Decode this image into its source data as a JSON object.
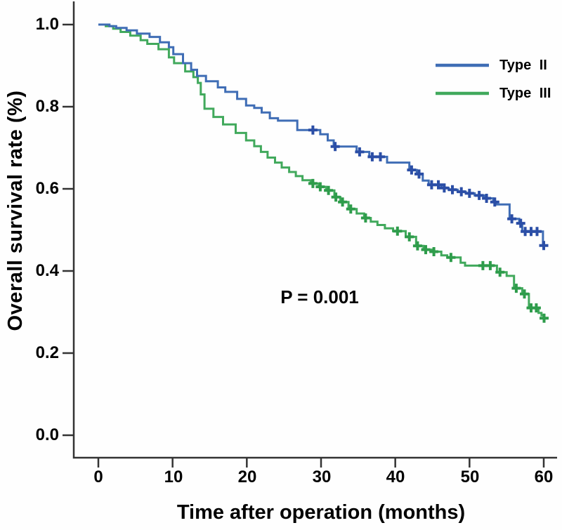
{
  "figure": {
    "background": "#fefefe",
    "axis_color": "#333333",
    "text_color": "#000000"
  },
  "chart_data": {
    "type": "line",
    "subtype": "kaplan-meier-step",
    "title": "",
    "xlabel": "Time after operation (months)",
    "ylabel": "Overall survival rate (%)",
    "annotation": "P = 0.001",
    "xlim": [
      0,
      60
    ],
    "ylim": [
      0.0,
      1.0
    ],
    "grid": false,
    "legend_position": "top-right",
    "x_tick_values": [
      0,
      10,
      20,
      30,
      40,
      50,
      60
    ],
    "x_tick_labels": [
      "0",
      "10",
      "20",
      "30",
      "40",
      "50",
      "60"
    ],
    "y_tick_values": [
      1.0,
      0.8,
      0.6,
      0.4,
      0.2,
      0.0
    ],
    "y_tick_labels": [
      "1.0",
      "0.8",
      "0.6",
      "0.4",
      "0.2",
      "0.0"
    ],
    "series": [
      {
        "name": "Type II",
        "color": "#3f6db5",
        "censor_color": "#2b4ea6",
        "steps": [
          [
            0,
            1.0
          ],
          [
            1.5,
            0.996
          ],
          [
            2.4,
            0.992
          ],
          [
            3.8,
            0.986
          ],
          [
            5.2,
            0.978
          ],
          [
            6.9,
            0.97
          ],
          [
            8.3,
            0.957
          ],
          [
            9.5,
            0.945
          ],
          [
            10.1,
            0.928
          ],
          [
            11.4,
            0.906
          ],
          [
            12.5,
            0.89
          ],
          [
            13.3,
            0.875
          ],
          [
            14.5,
            0.862
          ],
          [
            16.1,
            0.847
          ],
          [
            17.1,
            0.836
          ],
          [
            18.7,
            0.819
          ],
          [
            19.9,
            0.803
          ],
          [
            21,
            0.797
          ],
          [
            22,
            0.786
          ],
          [
            23.1,
            0.772
          ],
          [
            24.2,
            0.766
          ],
          [
            26.8,
            0.743
          ],
          [
            29.9,
            0.733
          ],
          [
            30.9,
            0.718
          ],
          [
            31.7,
            0.703
          ],
          [
            34.8,
            0.69
          ],
          [
            36.5,
            0.678
          ],
          [
            38.9,
            0.664
          ],
          [
            41.9,
            0.646
          ],
          [
            42.9,
            0.636
          ],
          [
            43.7,
            0.62
          ],
          [
            44.5,
            0.61
          ],
          [
            46.2,
            0.602
          ],
          [
            47.2,
            0.598
          ],
          [
            48.4,
            0.593
          ],
          [
            49.5,
            0.589
          ],
          [
            50.7,
            0.584
          ],
          [
            52,
            0.577
          ],
          [
            53.2,
            0.568
          ],
          [
            53.6,
            0.562
          ],
          [
            55.4,
            0.527
          ],
          [
            56.7,
            0.516
          ],
          [
            57.1,
            0.496
          ],
          [
            59.9,
            0.462
          ],
          [
            60.2,
            0.462
          ]
        ],
        "censor_times": [
          28.9,
          31.9,
          35.2,
          36.9,
          38,
          42.2,
          43.2,
          44.9,
          45.8,
          46.6,
          47.7,
          48.9,
          50,
          51.3,
          52.3,
          53.4,
          55.7,
          56.9,
          57.5,
          58.3,
          59.1,
          60
        ]
      },
      {
        "name": "Type III",
        "color": "#41a95c",
        "censor_color": "#2e9c4b",
        "steps": [
          [
            0,
            1.0
          ],
          [
            1,
            0.996
          ],
          [
            2,
            0.99
          ],
          [
            3,
            0.982
          ],
          [
            4.3,
            0.973
          ],
          [
            5.7,
            0.962
          ],
          [
            6.6,
            0.953
          ],
          [
            8.1,
            0.94
          ],
          [
            9.5,
            0.92
          ],
          [
            10.2,
            0.906
          ],
          [
            11.7,
            0.886
          ],
          [
            12.8,
            0.872
          ],
          [
            13.4,
            0.858
          ],
          [
            13.8,
            0.83
          ],
          [
            14.3,
            0.795
          ],
          [
            15.5,
            0.775
          ],
          [
            16.8,
            0.757
          ],
          [
            18.5,
            0.736
          ],
          [
            19.9,
            0.718
          ],
          [
            21,
            0.704
          ],
          [
            21.9,
            0.69
          ],
          [
            22.8,
            0.676
          ],
          [
            23.8,
            0.664
          ],
          [
            24.7,
            0.652
          ],
          [
            25.7,
            0.641
          ],
          [
            26.6,
            0.631
          ],
          [
            27.5,
            0.621
          ],
          [
            28.6,
            0.613
          ],
          [
            29.7,
            0.605
          ],
          [
            30.7,
            0.596
          ],
          [
            31.8,
            0.58
          ],
          [
            32.6,
            0.568
          ],
          [
            33.7,
            0.551
          ],
          [
            34.8,
            0.54
          ],
          [
            35.8,
            0.529
          ],
          [
            36.7,
            0.52
          ],
          [
            37.6,
            0.512
          ],
          [
            38.6,
            0.504
          ],
          [
            39.7,
            0.497
          ],
          [
            41.4,
            0.483
          ],
          [
            42.8,
            0.461
          ],
          [
            43.8,
            0.452
          ],
          [
            44.9,
            0.447
          ],
          [
            46.2,
            0.438
          ],
          [
            47,
            0.433
          ],
          [
            48.8,
            0.42
          ],
          [
            49.4,
            0.413
          ],
          [
            53.7,
            0.397
          ],
          [
            55,
            0.388
          ],
          [
            56,
            0.358
          ],
          [
            57.1,
            0.344
          ],
          [
            58,
            0.31
          ],
          [
            59.3,
            0.298
          ],
          [
            59.7,
            0.292
          ],
          [
            60,
            0.285
          ],
          [
            60.3,
            0.285
          ]
        ],
        "censor_times": [
          28.9,
          29.9,
          31,
          32,
          32.9,
          34,
          36,
          40.3,
          41.9,
          43,
          44.1,
          45.2,
          47.5,
          51.8,
          52.8,
          54.1,
          56.3,
          57.4,
          58.3,
          59,
          60.05
        ]
      }
    ]
  }
}
